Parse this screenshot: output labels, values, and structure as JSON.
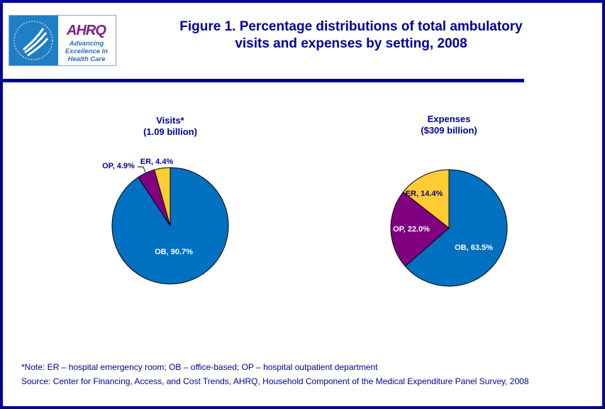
{
  "header": {
    "title_line1": "Figure 1. Percentage distributions of total ambulatory",
    "title_line2": "visits and expenses by setting, 2008",
    "logo": {
      "org": "AHRQ",
      "tagline": "Advancing Excellence in Health Care",
      "seal": "Department of Health & Human Services USA"
    }
  },
  "colors": {
    "OB": "#0070C0",
    "OP": "#800080",
    "ER": "#FFCC33",
    "text": "#000099"
  },
  "chart_data": [
    {
      "type": "pie",
      "title": "Visits*",
      "subtitle": "(1.09 billion)",
      "categories": [
        "OB",
        "OP",
        "ER"
      ],
      "values": [
        90.7,
        4.9,
        4.4
      ],
      "labels": [
        "OB, 90.7%",
        "OP, 4.9%",
        "ER, 4.4%"
      ]
    },
    {
      "type": "pie",
      "title": "Expenses",
      "subtitle": "($309 billion)",
      "categories": [
        "OB",
        "OP",
        "ER"
      ],
      "values": [
        63.5,
        22.0,
        14.4
      ],
      "labels": [
        "OB, 63.5%",
        "OP, 22.0%",
        "ER, 14.4%"
      ]
    }
  ],
  "footer": {
    "note": "*Note: ER – hospital emergency room; OB – office-based; OP – hospital outpatient department",
    "source": "Source: Center for Financing, Access, and Cost Trends, AHRQ, Household Component of the Medical Expenditure Panel Survey, 2008"
  }
}
